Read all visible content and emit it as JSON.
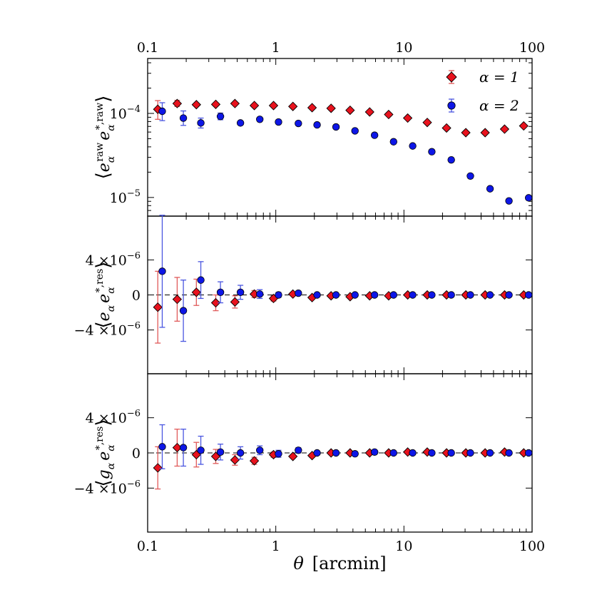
{
  "chart_data": [
    {
      "type": "scatter",
      "panel": "top",
      "ylabel": "⟨e_α^raw e_α^{*,raw}⟩",
      "ylabel_parts": [
        "⟨",
        "e",
        "α",
        "raw",
        "e",
        "α",
        "*,raw",
        "⟩"
      ],
      "xscale": "log",
      "yscale": "log",
      "xlim": [
        0.1,
        100
      ],
      "ylim": [
        6e-06,
        0.00045
      ],
      "yticks": [
        {
          "value": 0.0001,
          "base": "10",
          "exp": "−4"
        },
        {
          "value": 1e-05,
          "base": "10",
          "exp": "−5"
        }
      ],
      "top_xtick_labels": [
        {
          "value": 0.1,
          "label": "0.1"
        },
        {
          "value": 1,
          "label": "1"
        },
        {
          "value": 10,
          "label": "10"
        },
        {
          "value": 100,
          "label": "100"
        }
      ],
      "legend": {
        "position": "top-right",
        "entries": [
          {
            "label": "α = 1",
            "marker": "diamond",
            "color": "#e8121d"
          },
          {
            "label": "α = 2",
            "marker": "circle",
            "color": "#0d16e6"
          }
        ]
      },
      "series": [
        {
          "name": "α = 1",
          "marker": "diamond",
          "color": "#e8121d",
          "errcolor": "#e05a5a",
          "x": [
            0.12,
            0.17,
            0.24,
            0.34,
            0.48,
            0.68,
            0.96,
            1.36,
            1.92,
            2.7,
            3.8,
            5.4,
            7.6,
            10.7,
            15.2,
            21.5,
            30.4,
            43,
            61,
            86
          ],
          "y": [
            0.000112,
            0.000131,
            0.000127,
            0.000128,
            0.000131,
            0.000124,
            0.000124,
            0.000121,
            0.000117,
            0.000115,
            0.000109,
            0.000104,
            9.7e-05,
            8.8e-05,
            7.8e-05,
            6.7e-05,
            5.9e-05,
            5.9e-05,
            6.5e-05,
            7.1e-05
          ],
          "yerr_lo": [
            2.7e-05,
            1e-05,
            4e-06,
            2e-06,
            2e-06,
            1e-06,
            1e-06,
            0,
            0,
            0,
            0,
            0,
            0,
            0,
            0,
            0,
            0,
            0,
            0,
            0
          ],
          "yerr_hi": [
            3e-05,
            1.2e-05,
            5e-06,
            2e-06,
            2e-06,
            1e-06,
            1e-06,
            0,
            0,
            0,
            0,
            0,
            0,
            0,
            0,
            0,
            0,
            0,
            0,
            0
          ]
        },
        {
          "name": "α = 2",
          "marker": "circle",
          "color": "#0d16e6",
          "errcolor": "#4a56e0",
          "x": [
            0.13,
            0.19,
            0.26,
            0.37,
            0.53,
            0.75,
            1.05,
            1.5,
            2.1,
            2.95,
            4.15,
            5.9,
            8.3,
            11.7,
            16.5,
            23.4,
            33,
            47,
            66,
            94
          ],
          "y": [
            0.000106,
            8.8e-05,
            7.7e-05,
            9.2e-05,
            7.7e-05,
            8.5e-05,
            7.9e-05,
            7.6e-05,
            7.3e-05,
            6.9e-05,
            6.2e-05,
            5.5e-05,
            4.6e-05,
            4.1e-05,
            3.5e-05,
            2.8e-05,
            1.8e-05,
            1.27e-05,
            9.1e-06,
            9.9e-06
          ],
          "yerr_lo": [
            2.4e-05,
            1.6e-05,
            1e-05,
            8e-06,
            3e-06,
            3e-06,
            1e-06,
            0,
            0,
            0,
            0,
            0,
            0,
            0,
            0,
            0,
            0,
            0,
            0,
            0
          ],
          "yerr_hi": [
            2.8e-05,
            1.9e-05,
            1.1e-05,
            9e-06,
            3e-06,
            3e-06,
            1e-06,
            0,
            0,
            0,
            0,
            0,
            0,
            0,
            0,
            0,
            0,
            0,
            0,
            0
          ]
        }
      ]
    },
    {
      "type": "scatter",
      "panel": "middle",
      "ylabel": "⟨e_α e_α^{*,res}⟩",
      "ylabel_parts": [
        "⟨",
        "e",
        "α",
        "e",
        "α",
        "*,res",
        "⟩"
      ],
      "xscale": "log",
      "yscale": "linear",
      "xlim": [
        0.1,
        100
      ],
      "ylim": [
        -9e-06,
        9e-06
      ],
      "yticks": [
        {
          "value": 4e-06,
          "label": "4 ×10",
          "exp": "−6"
        },
        {
          "value": 0,
          "label": "0",
          "exp": ""
        },
        {
          "value": -4e-06,
          "label": "−4 ×10",
          "exp": "−6"
        }
      ],
      "zero_line": true,
      "series": [
        {
          "name": "α = 1",
          "marker": "diamond",
          "color": "#e8121d",
          "errcolor": "#e05a5a",
          "x": [
            0.12,
            0.17,
            0.24,
            0.34,
            0.48,
            0.68,
            0.96,
            1.36,
            1.92,
            2.7,
            3.8,
            5.4,
            7.6,
            10.7,
            15.2,
            21.5,
            30.4,
            43,
            61,
            86
          ],
          "y": [
            -1.4e-06,
            -5e-07,
            3e-07,
            -9e-07,
            -8e-07,
            1e-07,
            -4e-07,
            1e-07,
            -3e-07,
            -1e-07,
            -2e-07,
            -1e-07,
            -1e-07,
            0,
            0,
            0,
            0,
            0,
            0,
            0
          ],
          "yerr_lo": [
            4.1e-06,
            2.5e-06,
            1.5e-06,
            9e-07,
            7e-07,
            4e-07,
            3e-07,
            2e-07,
            2e-07,
            1e-07,
            1e-07,
            1e-07,
            1e-07,
            1e-07,
            1e-07,
            1e-07,
            1e-07,
            1e-07,
            1e-07,
            1e-07
          ],
          "yerr_hi": [
            4.1e-06,
            2.5e-06,
            1.5e-06,
            9e-07,
            7e-07,
            4e-07,
            3e-07,
            2e-07,
            2e-07,
            1e-07,
            1e-07,
            1e-07,
            1e-07,
            1e-07,
            1e-07,
            1e-07,
            1e-07,
            1e-07,
            1e-07,
            1e-07
          ]
        },
        {
          "name": "α = 2",
          "marker": "circle",
          "color": "#0d16e6",
          "errcolor": "#4a56e0",
          "x": [
            0.13,
            0.19,
            0.26,
            0.37,
            0.53,
            0.75,
            1.05,
            1.5,
            2.1,
            2.95,
            4.15,
            5.9,
            8.3,
            11.7,
            16.5,
            23.4,
            33,
            47,
            66,
            94
          ],
          "y": [
            2.7e-06,
            -1.8e-06,
            1.7e-06,
            3e-07,
            3e-07,
            1e-07,
            0,
            2e-07,
            0,
            0,
            0,
            0,
            0,
            0,
            0,
            0,
            0,
            0,
            0,
            0
          ],
          "yerr_lo": [
            6.4e-06,
            3.5e-06,
            2.1e-06,
            1.2e-06,
            8e-07,
            5e-07,
            3e-07,
            2e-07,
            2e-07,
            1e-07,
            1e-07,
            1e-07,
            1e-07,
            1e-07,
            1e-07,
            1e-07,
            1e-07,
            1e-07,
            1e-07,
            1e-07
          ],
          "yerr_hi": [
            6.4e-06,
            3.5e-06,
            2.1e-06,
            1.2e-06,
            8e-07,
            5e-07,
            3e-07,
            2e-07,
            2e-07,
            1e-07,
            1e-07,
            1e-07,
            1e-07,
            1e-07,
            1e-07,
            1e-07,
            1e-07,
            1e-07,
            1e-07,
            1e-07
          ]
        }
      ]
    },
    {
      "type": "scatter",
      "panel": "bottom",
      "ylabel": "⟨g_α e_α^{*,res}⟩",
      "ylabel_parts": [
        "⟨",
        "g",
        "α",
        "e",
        "α",
        "*,res",
        "⟩"
      ],
      "xscale": "log",
      "yscale": "linear",
      "xlim": [
        0.1,
        100
      ],
      "ylim": [
        -9e-06,
        9e-06
      ],
      "xlabel": "θ  [arcmin]",
      "xlabel_parts": [
        "θ",
        "[arcmin]"
      ],
      "xtick_labels": [
        {
          "value": 0.1,
          "label": "0.1"
        },
        {
          "value": 1,
          "label": "1"
        },
        {
          "value": 10,
          "label": "10"
        },
        {
          "value": 100,
          "label": "100"
        }
      ],
      "yticks": [
        {
          "value": 4e-06,
          "label": "4 ×10",
          "exp": "−6"
        },
        {
          "value": 0,
          "label": "0",
          "exp": ""
        },
        {
          "value": -4e-06,
          "label": "−4 ×10",
          "exp": "−6"
        }
      ],
      "zero_line": true,
      "series": [
        {
          "name": "α = 1",
          "marker": "diamond",
          "color": "#e8121d",
          "errcolor": "#e05a5a",
          "x": [
            0.12,
            0.17,
            0.24,
            0.34,
            0.48,
            0.68,
            0.96,
            1.36,
            1.92,
            2.7,
            3.8,
            5.4,
            7.6,
            10.7,
            15.2,
            21.5,
            30.4,
            43,
            61,
            86
          ],
          "y": [
            -1.7e-06,
            6e-07,
            -2e-07,
            -4e-07,
            -8e-07,
            -9e-07,
            -2e-07,
            -4e-07,
            -3e-07,
            0,
            0,
            0,
            0,
            1e-07,
            1e-07,
            0,
            0,
            0,
            1e-07,
            0
          ],
          "yerr_lo": [
            2.4e-06,
            2.1e-06,
            1.4e-06,
            8e-07,
            6e-07,
            4e-07,
            3e-07,
            2e-07,
            2e-07,
            1e-07,
            1e-07,
            1e-07,
            1e-07,
            1e-07,
            1e-07,
            1e-07,
            1e-07,
            1e-07,
            1e-07,
            1e-07
          ],
          "yerr_hi": [
            2.4e-06,
            2.1e-06,
            1.4e-06,
            8e-07,
            6e-07,
            4e-07,
            3e-07,
            2e-07,
            2e-07,
            1e-07,
            1e-07,
            1e-07,
            1e-07,
            1e-07,
            1e-07,
            1e-07,
            1e-07,
            1e-07,
            1e-07,
            1e-07
          ]
        },
        {
          "name": "α = 2",
          "marker": "circle",
          "color": "#0d16e6",
          "errcolor": "#4a56e0",
          "x": [
            0.13,
            0.19,
            0.26,
            0.37,
            0.53,
            0.75,
            1.05,
            1.5,
            2.1,
            2.95,
            4.15,
            5.9,
            8.3,
            11.7,
            16.5,
            23.4,
            33,
            47,
            66,
            94
          ],
          "y": [
            7e-07,
            6e-07,
            3e-07,
            1e-07,
            0,
            3e-07,
            -1e-07,
            3e-07,
            0,
            0,
            -1e-07,
            1e-07,
            0,
            0,
            0,
            0,
            0,
            0,
            0,
            0
          ],
          "yerr_lo": [
            2.5e-06,
            2.1e-06,
            1.6e-06,
            9e-07,
            7e-07,
            5e-07,
            4e-07,
            3e-07,
            2e-07,
            1e-07,
            1e-07,
            1e-07,
            1e-07,
            1e-07,
            1e-07,
            1e-07,
            1e-07,
            1e-07,
            1e-07,
            1e-07
          ],
          "yerr_hi": [
            2.5e-06,
            2.1e-06,
            1.6e-06,
            9e-07,
            7e-07,
            5e-07,
            4e-07,
            3e-07,
            2e-07,
            1e-07,
            1e-07,
            1e-07,
            1e-07,
            1e-07,
            1e-07,
            1e-07,
            1e-07,
            1e-07,
            1e-07,
            1e-07
          ]
        }
      ]
    }
  ]
}
